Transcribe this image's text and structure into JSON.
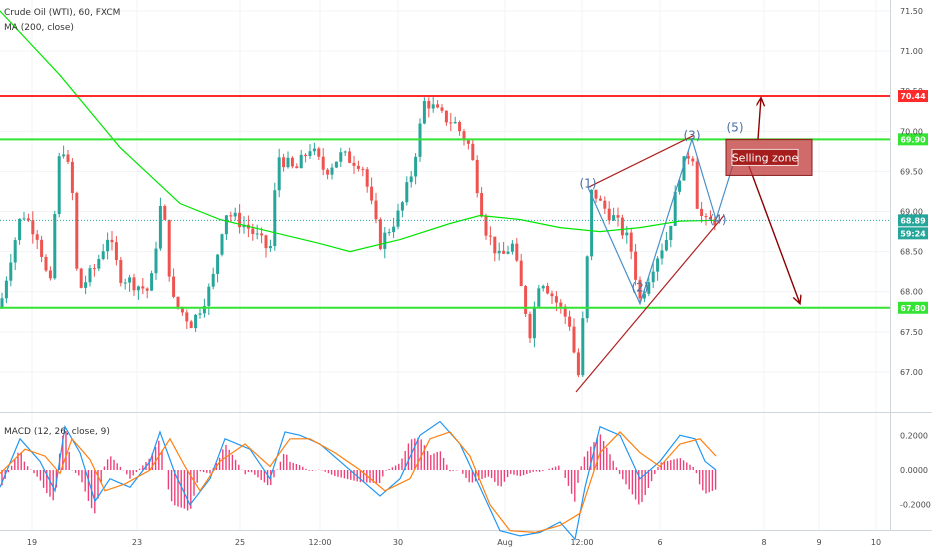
{
  "header": {
    "symbol": "Crude Oil (WTI), 60, FXCM",
    "ma_label": "MA (200, close)",
    "macd_label": "MACD (12, 26, close, 9)"
  },
  "colors": {
    "up": "#26a69a",
    "down": "#ef5350",
    "ma": "#00e600",
    "resistance": "#ff2a2a",
    "zone_line": "#33e433",
    "wedge": "#b02020",
    "wave": "#4a90c8",
    "arrow": "#8b0000",
    "zone_box": "#c0393b",
    "macd": "#2196f3",
    "signal": "#ff7f0e",
    "hist": "#e91e63"
  },
  "chart_data": {
    "type": "candlestick",
    "title": "Crude Oil (WTI), 60, FXCM",
    "ylim": [
      66.6,
      71.6
    ],
    "y_ticks": [
      "71.50",
      "71.00",
      "70.50",
      "70.00",
      "69.50",
      "69.00",
      "68.50",
      "68.00",
      "67.50",
      "67.00"
    ],
    "x_ticks": [
      "19",
      "23",
      "25",
      "12:00",
      "30",
      "Aug",
      "12:00",
      "6",
      "8",
      "9",
      "10"
    ],
    "price_path": [
      [
        0,
        67.8
      ],
      [
        10,
        68.4
      ],
      [
        22,
        69.0
      ],
      [
        38,
        68.7
      ],
      [
        50,
        68.0
      ],
      [
        58,
        69.6
      ],
      [
        64,
        69.8
      ],
      [
        72,
        69.3
      ],
      [
        78,
        68.0
      ],
      [
        95,
        68.3
      ],
      [
        108,
        68.7
      ],
      [
        120,
        68.2
      ],
      [
        150,
        68.0
      ],
      [
        162,
        69.2
      ],
      [
        172,
        67.9
      ],
      [
        192,
        67.6
      ],
      [
        212,
        68.1
      ],
      [
        225,
        69.0
      ],
      [
        248,
        68.8
      ],
      [
        270,
        68.5
      ],
      [
        278,
        69.7
      ],
      [
        295,
        69.5
      ],
      [
        310,
        69.8
      ],
      [
        325,
        69.5
      ],
      [
        340,
        69.7
      ],
      [
        362,
        69.6
      ],
      [
        380,
        68.6
      ],
      [
        400,
        69.0
      ],
      [
        412,
        69.5
      ],
      [
        425,
        70.4
      ],
      [
        440,
        70.2
      ],
      [
        455,
        70.1
      ],
      [
        470,
        69.8
      ],
      [
        485,
        68.8
      ],
      [
        500,
        68.4
      ],
      [
        512,
        68.6
      ],
      [
        530,
        67.5
      ],
      [
        540,
        68.2
      ],
      [
        560,
        67.8
      ],
      [
        570,
        67.6
      ],
      [
        578,
        66.9
      ],
      [
        584,
        67.8
      ],
      [
        592,
        69.3
      ],
      [
        600,
        69.1
      ],
      [
        615,
        68.9
      ],
      [
        630,
        68.6
      ],
      [
        640,
        67.9
      ],
      [
        655,
        68.4
      ],
      [
        668,
        68.7
      ],
      [
        680,
        69.5
      ],
      [
        692,
        69.8
      ],
      [
        698,
        69.0
      ],
      [
        706,
        68.85
      ],
      [
        716,
        68.9
      ]
    ],
    "ma_path": [
      [
        0,
        71.5
      ],
      [
        60,
        70.7
      ],
      [
        120,
        69.8
      ],
      [
        180,
        69.1
      ],
      [
        220,
        68.9
      ],
      [
        270,
        68.75
      ],
      [
        320,
        68.6
      ],
      [
        350,
        68.5
      ],
      [
        400,
        68.65
      ],
      [
        450,
        68.85
      ],
      [
        480,
        68.95
      ],
      [
        520,
        68.9
      ],
      [
        560,
        68.8
      ],
      [
        600,
        68.75
      ],
      [
        640,
        68.8
      ],
      [
        680,
        68.88
      ],
      [
        716,
        68.89
      ]
    ],
    "series": [
      {
        "name": "MA (200, close)"
      }
    ],
    "levels": [
      {
        "value": 70.44,
        "label": "70.44"
      },
      {
        "value": 69.9,
        "label": "69.90"
      },
      {
        "value": 67.8,
        "label": "67.80"
      }
    ],
    "current_price": {
      "value": 68.89,
      "label": "68.89",
      "countdown": "59:24"
    },
    "wave_labels": [
      {
        "label": "(1)",
        "x": 588,
        "y": 69.25
      },
      {
        "label": "(2)",
        "x": 640,
        "y": 67.95
      },
      {
        "label": "(3)",
        "x": 692,
        "y": 69.85
      },
      {
        "label": "(4)",
        "x": 718,
        "y": 68.8
      },
      {
        "label": "(5)",
        "x": 735,
        "y": 69.95
      }
    ],
    "zone_box_label": "Selling zone",
    "macd": {
      "ylim": [
        -0.3,
        0.3
      ],
      "y_ticks": [
        "0.2000",
        "0.0000",
        "-0.2000"
      ],
      "macd_path": [
        [
          0,
          -0.1
        ],
        [
          20,
          0.18
        ],
        [
          40,
          0.05
        ],
        [
          55,
          -0.12
        ],
        [
          65,
          0.25
        ],
        [
          80,
          0.1
        ],
        [
          95,
          -0.18
        ],
        [
          110,
          -0.05
        ],
        [
          130,
          -0.1
        ],
        [
          150,
          0.05
        ],
        [
          160,
          0.22
        ],
        [
          175,
          -0.02
        ],
        [
          190,
          -0.2
        ],
        [
          210,
          -0.05
        ],
        [
          225,
          0.18
        ],
        [
          250,
          0.12
        ],
        [
          270,
          -0.05
        ],
        [
          285,
          0.22
        ],
        [
          300,
          0.2
        ],
        [
          320,
          0.15
        ],
        [
          340,
          0.05
        ],
        [
          360,
          -0.05
        ],
        [
          380,
          -0.15
        ],
        [
          400,
          -0.05
        ],
        [
          420,
          0.2
        ],
        [
          440,
          0.28
        ],
        [
          460,
          0.15
        ],
        [
          480,
          -0.1
        ],
        [
          500,
          -0.35
        ],
        [
          520,
          -0.38
        ],
        [
          540,
          -0.36
        ],
        [
          560,
          -0.3
        ],
        [
          575,
          -0.4
        ],
        [
          585,
          -0.1
        ],
        [
          600,
          0.25
        ],
        [
          620,
          0.2
        ],
        [
          640,
          -0.05
        ],
        [
          660,
          0.05
        ],
        [
          680,
          0.2
        ],
        [
          695,
          0.18
        ],
        [
          705,
          0.05
        ],
        [
          716,
          0.0
        ]
      ],
      "signal_path": [
        [
          0,
          -0.02
        ],
        [
          25,
          0.12
        ],
        [
          45,
          0.08
        ],
        [
          60,
          -0.02
        ],
        [
          72,
          0.18
        ],
        [
          90,
          0.06
        ],
        [
          105,
          -0.12
        ],
        [
          125,
          -0.08
        ],
        [
          150,
          0.0
        ],
        [
          170,
          0.18
        ],
        [
          185,
          0.02
        ],
        [
          200,
          -0.12
        ],
        [
          220,
          0.05
        ],
        [
          245,
          0.15
        ],
        [
          270,
          0.02
        ],
        [
          290,
          0.18
        ],
        [
          310,
          0.18
        ],
        [
          335,
          0.1
        ],
        [
          360,
          0.0
        ],
        [
          385,
          -0.12
        ],
        [
          410,
          -0.05
        ],
        [
          430,
          0.18
        ],
        [
          450,
          0.22
        ],
        [
          470,
          0.08
        ],
        [
          490,
          -0.2
        ],
        [
          510,
          -0.35
        ],
        [
          535,
          -0.36
        ],
        [
          560,
          -0.32
        ],
        [
          580,
          -0.25
        ],
        [
          600,
          0.1
        ],
        [
          620,
          0.22
        ],
        [
          640,
          0.1
        ],
        [
          660,
          0.02
        ],
        [
          680,
          0.15
        ],
        [
          700,
          0.18
        ],
        [
          716,
          0.08
        ]
      ]
    }
  },
  "tags": {
    "resistance_value": "70.44",
    "price_value": "68.89",
    "countdown_value": "59:24"
  }
}
